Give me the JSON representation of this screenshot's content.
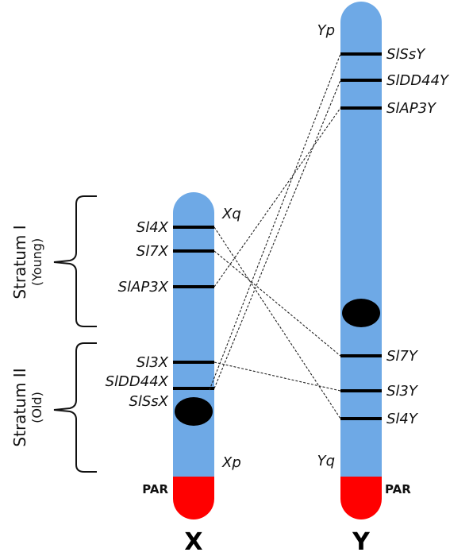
{
  "chromosomes": {
    "x": {
      "name": "X",
      "par_label": "PAR",
      "q_arm_label": "Xq",
      "p_arm_label": "Xp",
      "genes": [
        "Sl4X",
        "Sl7X",
        "SlAP3X",
        "Sl3X",
        "SlDD44X",
        "SlSsX"
      ]
    },
    "y": {
      "name": "Y",
      "par_label": "PAR",
      "p_arm_label": "Yp",
      "q_arm_label": "Yq",
      "genes": [
        "SlSsY",
        "SlDD44Y",
        "SlAP3Y",
        "Sl7Y",
        "Sl3Y",
        "Sl4Y"
      ]
    }
  },
  "strata": [
    {
      "main": "Stratum I",
      "sub": "(Young)"
    },
    {
      "main": "Stratum II",
      "sub": "(Old)"
    }
  ],
  "links": [
    {
      "from": "Sl4X",
      "to": "Sl4Y"
    },
    {
      "from": "Sl7X",
      "to": "Sl7Y"
    },
    {
      "from": "SlAP3X",
      "to": "SlAP3Y"
    },
    {
      "from": "Sl3X",
      "to": "Sl3Y"
    },
    {
      "from": "SlDD44X",
      "to": "SlDD44Y"
    },
    {
      "from": "SlSsX",
      "to": "SlSsY"
    }
  ],
  "colors": {
    "chromosome": "#6ea9e6",
    "par": "#ff0000",
    "band": "#000000",
    "centromere": "#000000"
  }
}
